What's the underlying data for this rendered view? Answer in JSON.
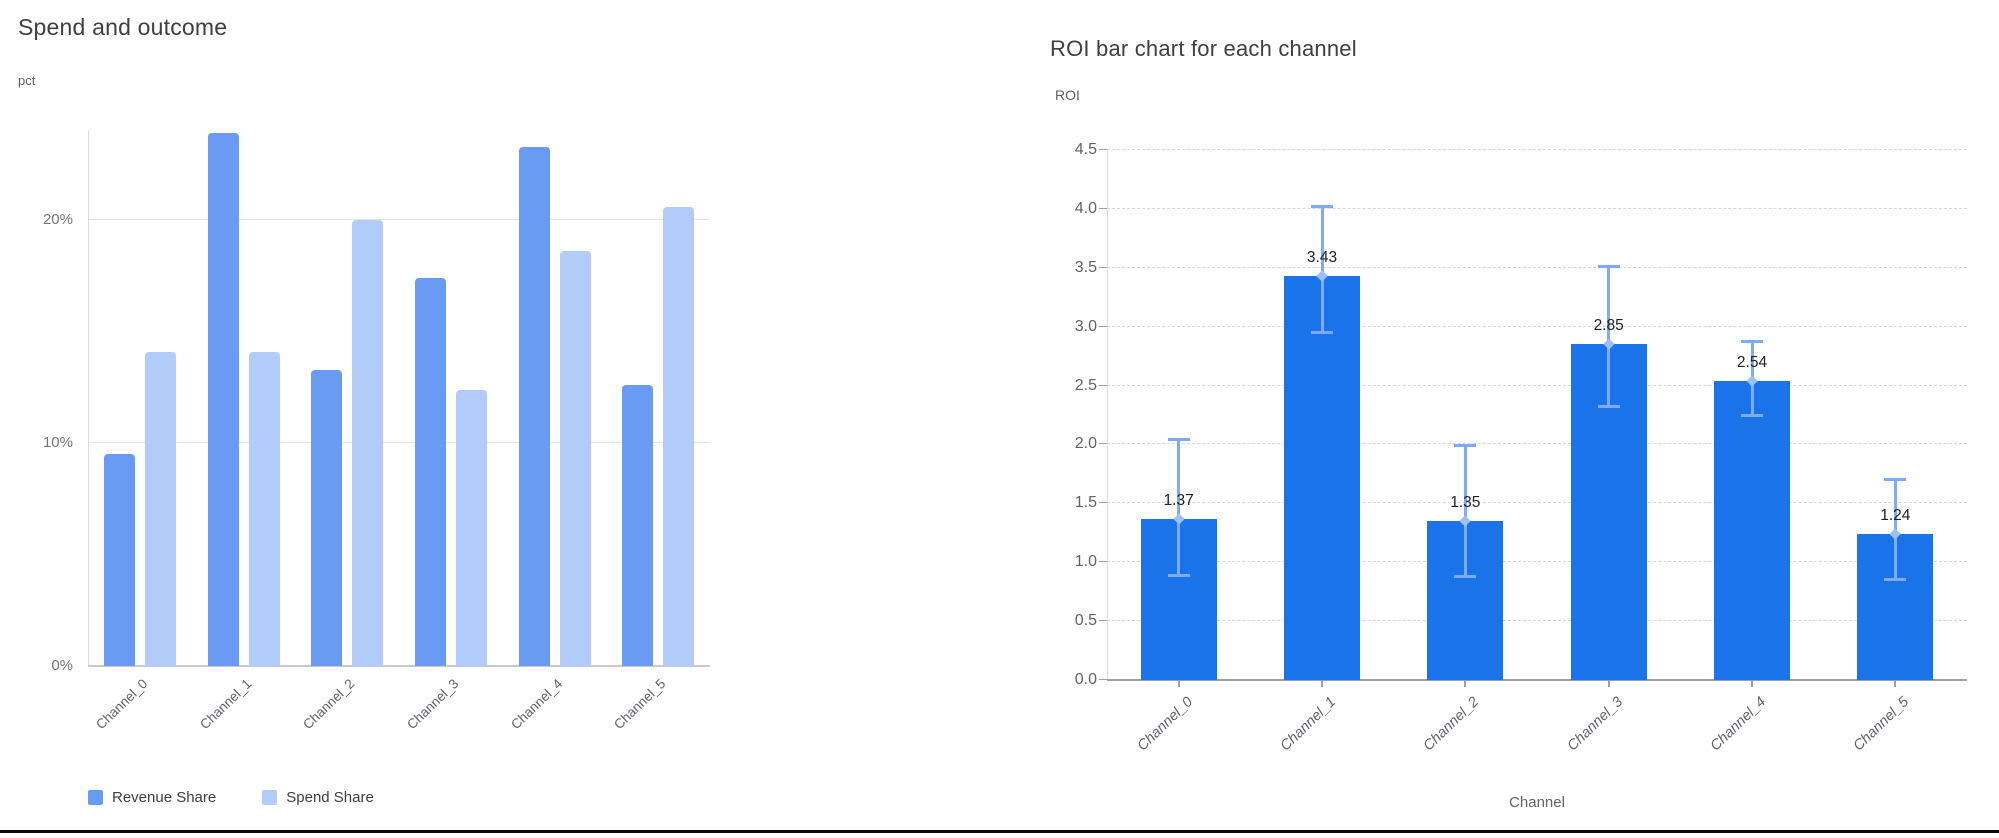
{
  "chart_data": [
    {
      "type": "bar",
      "title": "Spend and outcome",
      "ylabel": "pct",
      "xlabel": "",
      "categories": [
        "Channel_0",
        "Channel_1",
        "Channel_2",
        "Channel_3",
        "Channel_4",
        "Channel_5"
      ],
      "series": [
        {
          "name": "Revenue Share",
          "color": "#6a9bf2",
          "values": [
            9.5,
            23.9,
            13.3,
            17.4,
            23.3,
            12.6
          ]
        },
        {
          "name": "Spend Share",
          "color": "#b1ccf8",
          "values": [
            14.1,
            14.1,
            20.0,
            12.4,
            18.6,
            20.6
          ]
        }
      ],
      "yticks": [
        {
          "v": 0,
          "label": "0%"
        },
        {
          "v": 10,
          "label": "10%"
        },
        {
          "v": 20,
          "label": "20%"
        }
      ],
      "ylim": [
        0,
        24
      ],
      "grid": "horizontal solid",
      "legend_position": "bottom-left"
    },
    {
      "type": "bar",
      "title": "ROI bar chart for each channel",
      "ylabel": "ROI",
      "xlabel": "Channel",
      "categories": [
        "Channel_0",
        "Channel_1",
        "Channel_2",
        "Channel_3",
        "Channel_4",
        "Channel_5"
      ],
      "values": [
        1.37,
        3.43,
        1.35,
        2.85,
        2.54,
        1.24
      ],
      "data_labels": [
        "1.37",
        "3.43",
        "1.35",
        "2.85",
        "2.54",
        "1.24"
      ],
      "error_low": [
        0.89,
        2.95,
        0.88,
        2.32,
        2.25,
        0.85
      ],
      "error_high": [
        2.04,
        4.02,
        1.99,
        3.51,
        2.87,
        1.7
      ],
      "yticks": [
        "0.0",
        "0.5",
        "1.0",
        "1.5",
        "2.0",
        "2.5",
        "3.0",
        "3.5",
        "4.0",
        "4.5"
      ],
      "ylim": [
        0,
        4.5
      ],
      "bar_color": "#1a73e8",
      "error_color": "#7faaf8",
      "grid": "horizontal dashed",
      "legend_position": "none"
    }
  ],
  "colors": {
    "title_text": "#3c4043",
    "axis_text": "#5f6368",
    "gridline_solid": "#e4e4e4",
    "gridline_dashed": "#d4d6d9",
    "bottom_rule": "#0b0b0b"
  }
}
